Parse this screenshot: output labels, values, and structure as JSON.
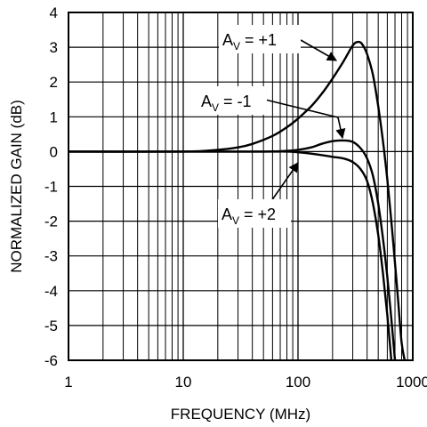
{
  "chart_data": {
    "type": "line",
    "title": "",
    "xlabel": "FREQUENCY (MHz)",
    "ylabel": "NORMALIZED GAIN (dB)",
    "xscale": "log",
    "xlim": [
      1,
      1000
    ],
    "ylim": [
      -6,
      4
    ],
    "xticks": [
      1,
      10,
      100,
      1000
    ],
    "xtick_labels": [
      "1",
      "10",
      "100",
      "1000"
    ],
    "yticks": [
      4,
      3,
      2,
      1,
      0,
      -1,
      -2,
      -3,
      -4,
      -5,
      -6
    ],
    "ytick_labels": [
      "4",
      "3",
      "2",
      "1",
      "0",
      "-1",
      "-2",
      "-3",
      "-4",
      "-5",
      "-6"
    ],
    "grid": true,
    "series": [
      {
        "name": "A_V = +1",
        "x": [
          1,
          10,
          20,
          30,
          40,
          60,
          80,
          100,
          130,
          160,
          200,
          250,
          300,
          330,
          360,
          400,
          450,
          500,
          550,
          600,
          650,
          700,
          750,
          800,
          850
        ],
        "y": [
          0,
          0,
          0.05,
          0.12,
          0.22,
          0.45,
          0.7,
          0.95,
          1.3,
          1.65,
          2.1,
          2.6,
          3.05,
          3.15,
          3.1,
          2.8,
          2.2,
          1.3,
          0.3,
          -0.8,
          -2.0,
          -3.2,
          -4.4,
          -5.5,
          -6
        ]
      },
      {
        "name": "A_V = -1",
        "x": [
          1,
          10,
          50,
          80,
          100,
          130,
          160,
          200,
          250,
          300,
          350,
          400,
          450,
          500,
          550,
          600,
          650,
          700
        ],
        "y": [
          0,
          0,
          0,
          0.02,
          0.05,
          0.12,
          0.22,
          0.3,
          0.32,
          0.28,
          0.1,
          -0.2,
          -0.7,
          -1.5,
          -2.5,
          -3.6,
          -4.8,
          -6
        ]
      },
      {
        "name": "A_V = +2",
        "x": [
          1,
          10,
          50,
          80,
          100,
          130,
          160,
          200,
          250,
          300,
          350,
          400,
          450,
          500,
          550,
          600,
          650
        ],
        "y": [
          0,
          0,
          0,
          0,
          -0.02,
          -0.06,
          -0.1,
          -0.15,
          -0.2,
          -0.3,
          -0.5,
          -0.85,
          -1.5,
          -2.4,
          -3.5,
          -4.7,
          -6
        ]
      }
    ],
    "annotations": [
      {
        "main": "A",
        "sub": "V",
        "rest": " = +1",
        "series": "A_V = +1"
      },
      {
        "main": "A",
        "sub": "V",
        "rest": " = -1",
        "series": "A_V = -1"
      },
      {
        "main": "A",
        "sub": "V",
        "rest": " = +2",
        "series": "A_V = +2"
      }
    ]
  }
}
